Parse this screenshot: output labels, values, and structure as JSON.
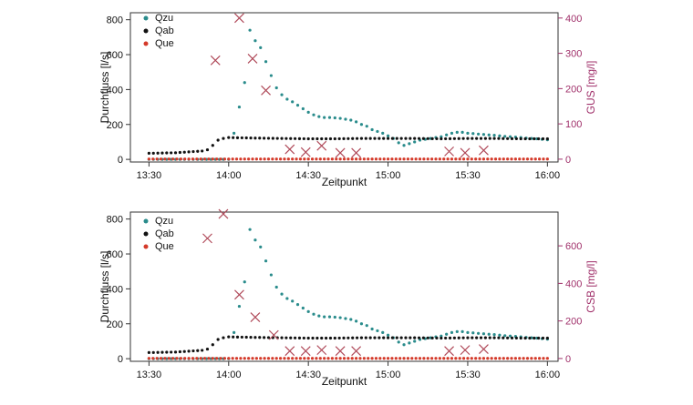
{
  "colors": {
    "qzu": "#2a8c8c",
    "qab": "#111111",
    "que": "#d43a2a",
    "marker": "#b04a5a",
    "axis": "#333333",
    "secondary_axis": "#a0306a"
  },
  "chart_data": [
    {
      "type": "scatter",
      "title": "",
      "xlabel": "Zeitpunkt",
      "ylabel": "Durchfluss [l/s]",
      "y2label": "GUS [mg/l]",
      "xlim": [
        "13:23",
        "16:04"
      ],
      "ylim": [
        -15,
        840
      ],
      "y2lim": [
        -8,
        415
      ],
      "xticks": [
        "13:30",
        "14:00",
        "14:30",
        "15:00",
        "15:30",
        "16:00"
      ],
      "yticks": [
        0,
        200,
        400,
        600,
        800
      ],
      "y2ticks": [
        0,
        100,
        200,
        300,
        400
      ],
      "legend": {
        "placement": "top-left",
        "entries": [
          "Qzu",
          "Qab",
          "Que"
        ]
      },
      "grid": false,
      "series": [
        {
          "name": "Qzu",
          "color": "#2a8c8c",
          "marker": "dot",
          "x": [
            "13:30",
            "13:40",
            "13:50",
            "13:55",
            "13:58",
            "14:00",
            "14:02",
            "14:04",
            "14:06",
            "14:08",
            "14:10",
            "14:12",
            "14:14",
            "14:16",
            "14:18",
            "14:20",
            "14:22",
            "14:24",
            "14:26",
            "14:28",
            "14:30",
            "14:32",
            "14:34",
            "14:36",
            "14:38",
            "14:40",
            "14:42",
            "14:44",
            "14:46",
            "14:48",
            "14:50",
            "14:52",
            "14:54",
            "14:56",
            "14:58",
            "15:00",
            "15:02",
            "15:04",
            "15:06",
            "15:08",
            "15:10",
            "15:12",
            "15:14",
            "15:16",
            "15:18",
            "15:20",
            "15:22",
            "15:24",
            "15:26",
            "15:28",
            "15:30",
            "15:32",
            "15:34",
            "15:36",
            "15:38",
            "15:40",
            "15:42",
            "15:44",
            "15:46",
            "15:48",
            "15:50",
            "15:52",
            "15:54",
            "15:56",
            "15:58",
            "16:00"
          ],
          "y": [
            0,
            0,
            0,
            0,
            0,
            0,
            150,
            300,
            440,
            740,
            680,
            640,
            560,
            480,
            410,
            370,
            345,
            330,
            310,
            290,
            270,
            255,
            245,
            240,
            240,
            238,
            235,
            230,
            225,
            215,
            200,
            190,
            170,
            160,
            150,
            135,
            120,
            95,
            80,
            90,
            100,
            110,
            115,
            120,
            125,
            130,
            140,
            150,
            155,
            155,
            150,
            148,
            145,
            143,
            140,
            138,
            135,
            132,
            130,
            128,
            125,
            122,
            120,
            118,
            115,
            112
          ]
        },
        {
          "name": "Qab",
          "color": "#111111",
          "marker": "dot",
          "x": [
            "13:30",
            "13:40",
            "13:50",
            "13:52",
            "13:54",
            "13:56",
            "13:58",
            "14:00",
            "14:10",
            "14:20",
            "14:30",
            "14:40",
            "14:50",
            "15:00",
            "15:10",
            "15:20",
            "15:30",
            "15:40",
            "15:50",
            "16:00"
          ],
          "y": [
            35,
            38,
            48,
            55,
            80,
            110,
            120,
            125,
            122,
            120,
            118,
            118,
            120,
            120,
            120,
            118,
            120,
            120,
            118,
            118
          ]
        },
        {
          "name": "Que",
          "color": "#d43a2a",
          "marker": "dot",
          "x": [
            "13:30",
            "14:00",
            "14:30",
            "15:00",
            "15:30",
            "16:00"
          ],
          "y": [
            2,
            2,
            2,
            2,
            2,
            2
          ]
        },
        {
          "name": "",
          "axis": "y2",
          "color": "#b04a5a",
          "marker": "x",
          "x": [
            "13:55",
            "14:04",
            "14:09",
            "14:14",
            "14:23",
            "14:29",
            "14:35",
            "14:42",
            "14:48",
            "15:23",
            "15:29",
            "15:36"
          ],
          "y": [
            280,
            400,
            285,
            195,
            28,
            20,
            38,
            18,
            18,
            22,
            18,
            25
          ]
        }
      ]
    },
    {
      "type": "scatter",
      "title": "",
      "xlabel": "Zeitpunkt",
      "ylabel": "Durchfluss [l/s]",
      "y2label": "CSB [mg/l]",
      "xlim": [
        "13:23",
        "16:04"
      ],
      "ylim": [
        -15,
        840
      ],
      "y2lim": [
        -15,
        780
      ],
      "xticks": [
        "13:30",
        "14:00",
        "14:30",
        "15:00",
        "15:30",
        "16:00"
      ],
      "yticks": [
        0,
        200,
        400,
        600,
        800
      ],
      "y2ticks": [
        0,
        200,
        400,
        600
      ],
      "legend": {
        "placement": "top-left",
        "entries": [
          "Qzu",
          "Qab",
          "Que"
        ]
      },
      "grid": false,
      "series": [
        {
          "name": "Qzu",
          "color": "#2a8c8c",
          "marker": "dot",
          "x": [
            "13:30",
            "13:40",
            "13:50",
            "13:55",
            "13:58",
            "14:00",
            "14:02",
            "14:04",
            "14:06",
            "14:08",
            "14:10",
            "14:12",
            "14:14",
            "14:16",
            "14:18",
            "14:20",
            "14:22",
            "14:24",
            "14:26",
            "14:28",
            "14:30",
            "14:32",
            "14:34",
            "14:36",
            "14:38",
            "14:40",
            "14:42",
            "14:44",
            "14:46",
            "14:48",
            "14:50",
            "14:52",
            "14:54",
            "14:56",
            "14:58",
            "15:00",
            "15:02",
            "15:04",
            "15:06",
            "15:08",
            "15:10",
            "15:12",
            "15:14",
            "15:16",
            "15:18",
            "15:20",
            "15:22",
            "15:24",
            "15:26",
            "15:28",
            "15:30",
            "15:32",
            "15:34",
            "15:36",
            "15:38",
            "15:40",
            "15:42",
            "15:44",
            "15:46",
            "15:48",
            "15:50",
            "15:52",
            "15:54",
            "15:56",
            "15:58",
            "16:00"
          ],
          "y": [
            0,
            0,
            0,
            0,
            0,
            0,
            150,
            300,
            440,
            740,
            680,
            640,
            560,
            480,
            410,
            370,
            345,
            330,
            310,
            290,
            270,
            255,
            245,
            240,
            240,
            238,
            235,
            230,
            225,
            215,
            200,
            190,
            170,
            160,
            150,
            135,
            120,
            95,
            80,
            90,
            100,
            110,
            115,
            120,
            125,
            130,
            140,
            150,
            155,
            155,
            150,
            148,
            145,
            143,
            140,
            138,
            135,
            132,
            130,
            128,
            125,
            122,
            120,
            118,
            115,
            112
          ]
        },
        {
          "name": "Qab",
          "color": "#111111",
          "marker": "dot",
          "x": [
            "13:30",
            "13:40",
            "13:50",
            "13:52",
            "13:54",
            "13:56",
            "13:58",
            "14:00",
            "14:10",
            "14:20",
            "14:30",
            "14:40",
            "14:50",
            "15:00",
            "15:10",
            "15:20",
            "15:30",
            "15:40",
            "15:50",
            "16:00"
          ],
          "y": [
            35,
            38,
            48,
            55,
            80,
            110,
            120,
            125,
            122,
            120,
            118,
            118,
            120,
            120,
            120,
            118,
            120,
            120,
            118,
            118
          ]
        },
        {
          "name": "Que",
          "color": "#d43a2a",
          "marker": "dot",
          "x": [
            "13:30",
            "14:00",
            "14:30",
            "15:00",
            "15:30",
            "16:00"
          ],
          "y": [
            2,
            2,
            2,
            2,
            2,
            2
          ]
        },
        {
          "name": "",
          "axis": "y2",
          "color": "#b04a5a",
          "marker": "x",
          "x": [
            "13:52",
            "13:58",
            "14:04",
            "14:10",
            "14:17",
            "14:23",
            "14:29",
            "14:35",
            "14:42",
            "14:48",
            "15:23",
            "15:29",
            "15:36"
          ],
          "y": [
            640,
            770,
            340,
            220,
            125,
            40,
            40,
            45,
            40,
            40,
            40,
            45,
            50
          ]
        }
      ]
    }
  ]
}
